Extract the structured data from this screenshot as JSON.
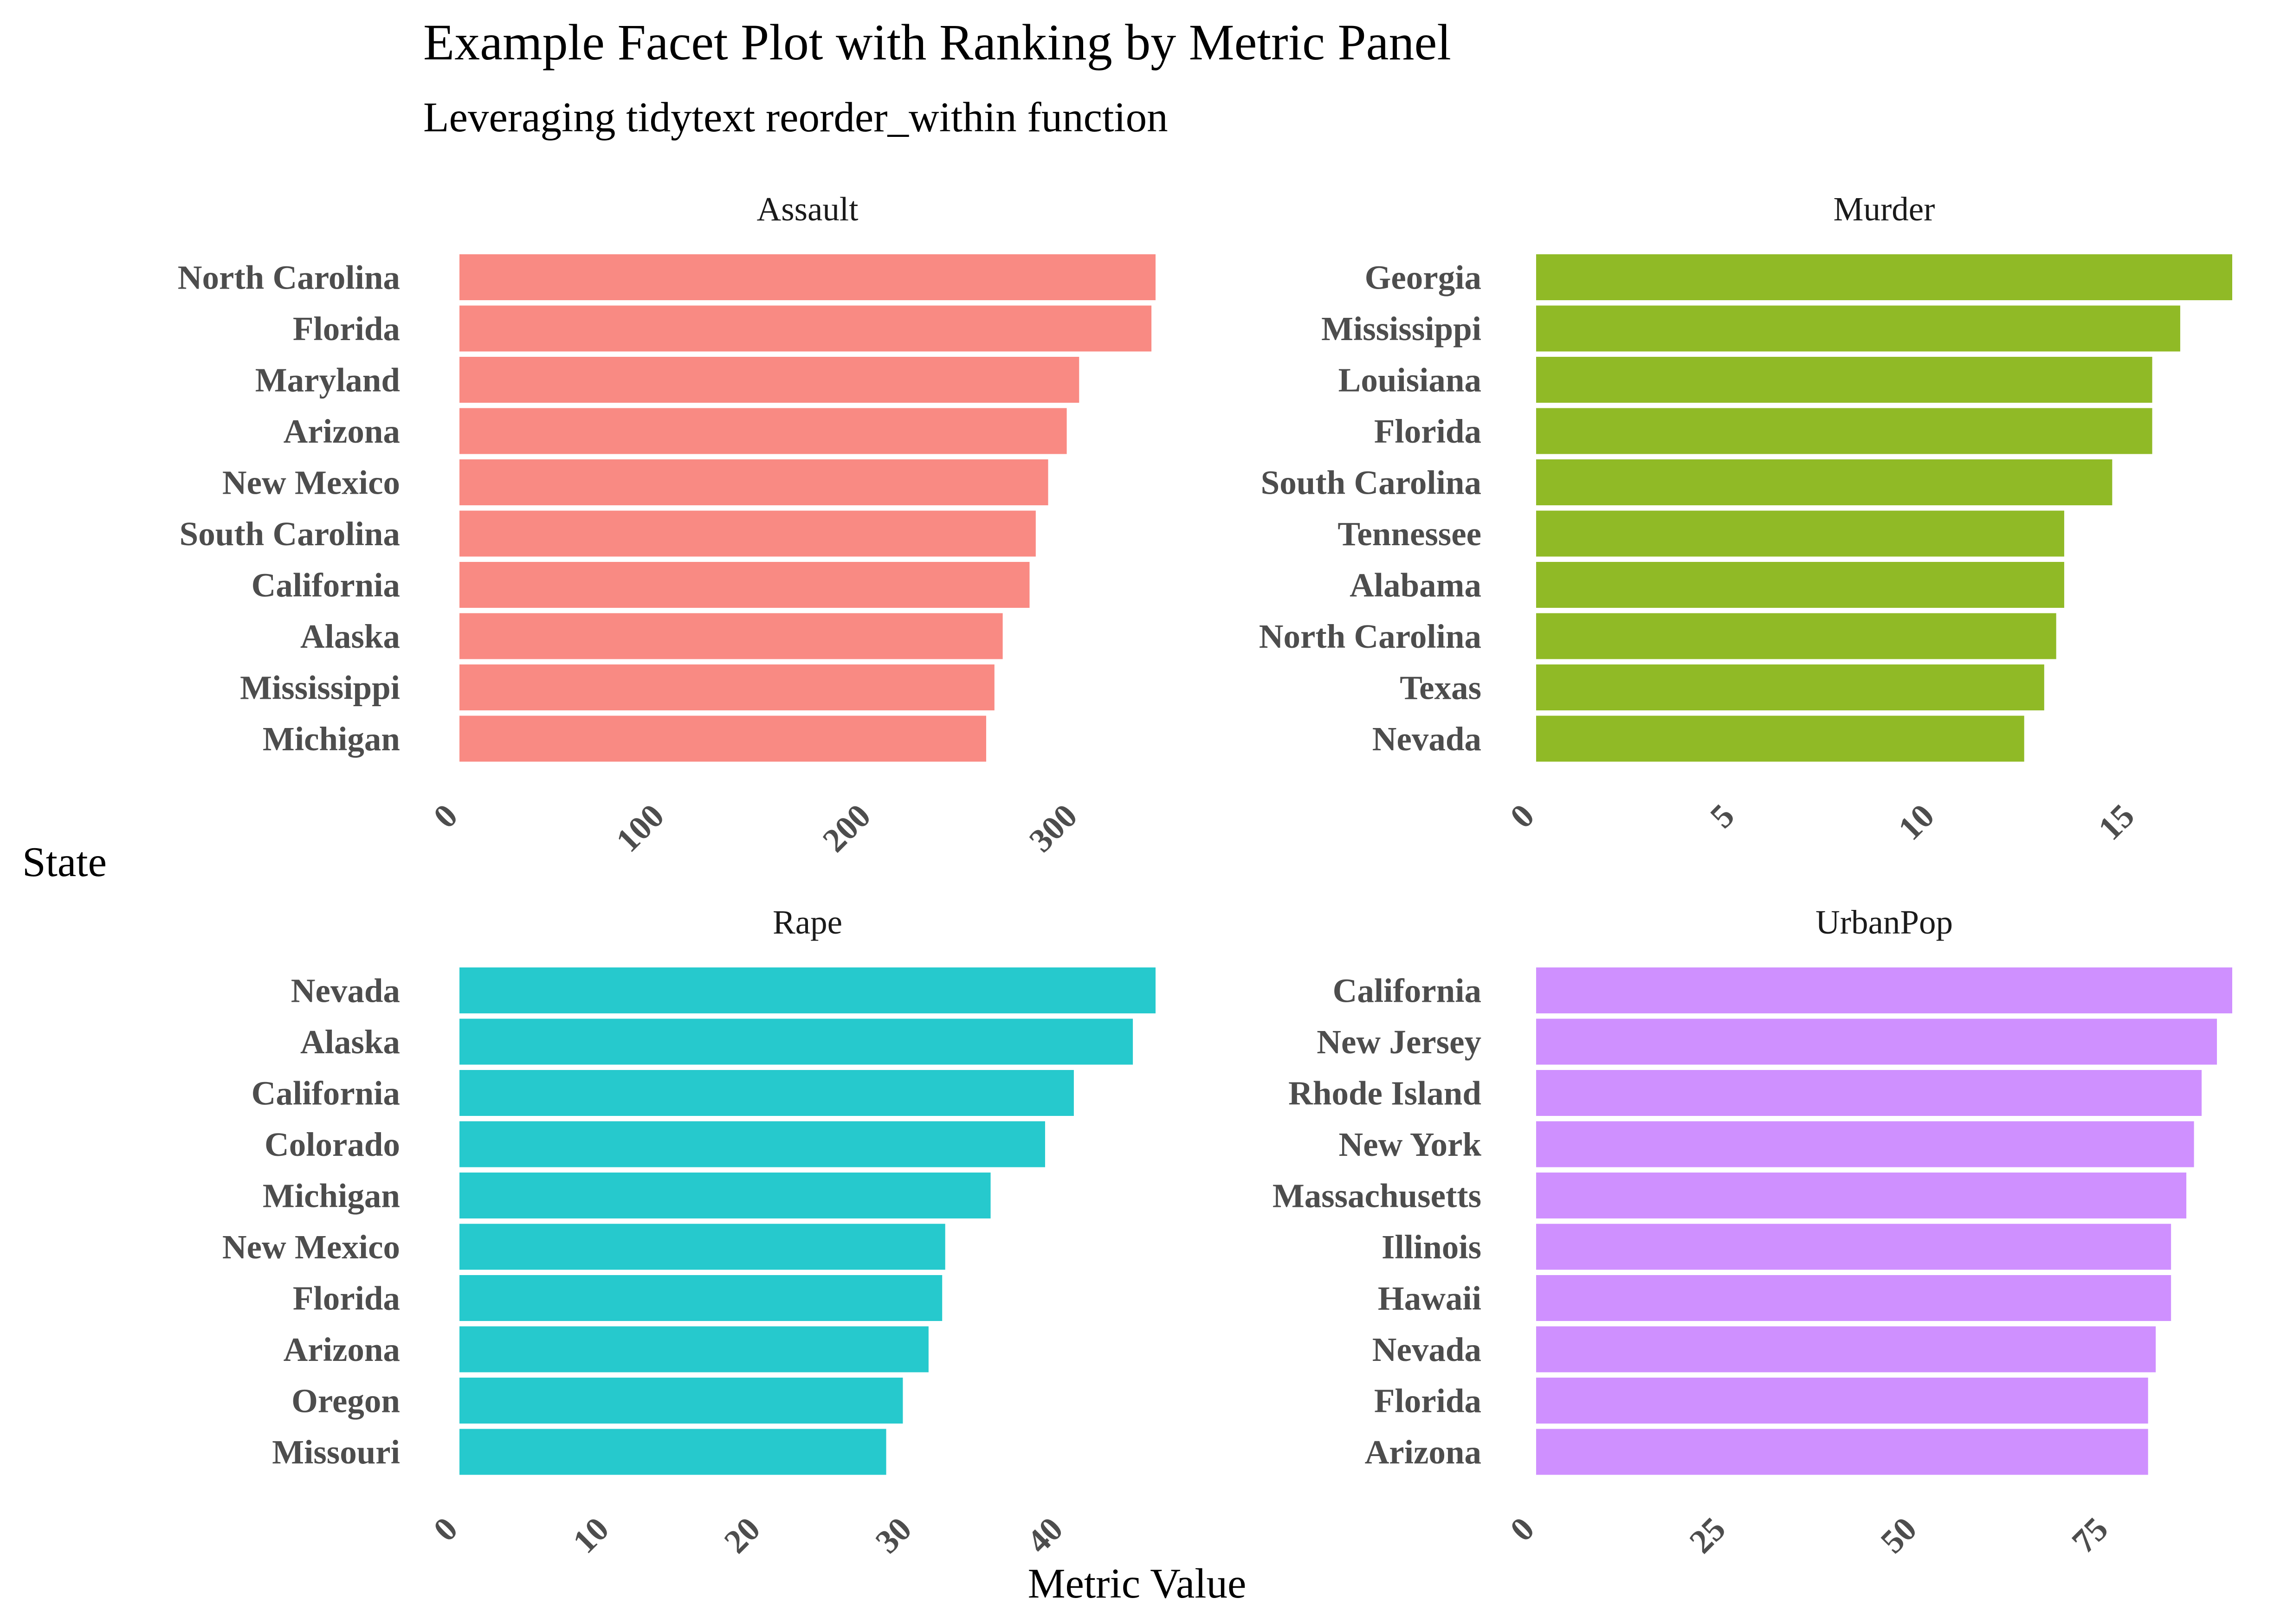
{
  "title": "Example Facet Plot with Ranking by Metric Panel",
  "subtitle": "Leveraging tidytext reorder_within function",
  "y_axis_label": "State",
  "x_axis_label": "Metric Value",
  "chart_data": [
    {
      "type": "bar",
      "orientation": "horizontal",
      "facet": "Assault",
      "color": "#F8766D",
      "categories": [
        "North Carolina",
        "Florida",
        "Maryland",
        "Arizona",
        "New Mexico",
        "South Carolina",
        "California",
        "Alaska",
        "Mississippi",
        "Michigan"
      ],
      "values": [
        337,
        335,
        300,
        294,
        285,
        279,
        276,
        263,
        259,
        255
      ],
      "xticks": [
        0,
        100,
        200,
        300
      ],
      "xlim": [
        0,
        337
      ]
    },
    {
      "type": "bar",
      "orientation": "horizontal",
      "facet": "Murder",
      "color": "#7CAE00",
      "categories": [
        "Georgia",
        "Mississippi",
        "Louisiana",
        "Florida",
        "South Carolina",
        "Tennessee",
        "Alabama",
        "North Carolina",
        "Texas",
        "Nevada"
      ],
      "values": [
        17.4,
        16.1,
        15.4,
        15.4,
        14.4,
        13.2,
        13.2,
        13.0,
        12.7,
        12.2
      ],
      "xticks": [
        0,
        5,
        10,
        15
      ],
      "xlim": [
        0,
        17.4
      ]
    },
    {
      "type": "bar",
      "orientation": "horizontal",
      "facet": "Rape",
      "color": "#00BFC4",
      "categories": [
        "Nevada",
        "Alaska",
        "California",
        "Colorado",
        "Michigan",
        "New Mexico",
        "Florida",
        "Arizona",
        "Oregon",
        "Missouri"
      ],
      "values": [
        46.0,
        44.5,
        40.6,
        38.7,
        35.1,
        32.1,
        31.9,
        31.0,
        29.3,
        28.2
      ],
      "xticks": [
        0,
        10,
        20,
        30,
        40
      ],
      "xlim": [
        0,
        46.0
      ]
    },
    {
      "type": "bar",
      "orientation": "horizontal",
      "facet": "UrbanPop",
      "color": "#C77CFF",
      "categories": [
        "California",
        "New Jersey",
        "Rhode Island",
        "New York",
        "Massachusetts",
        "Illinois",
        "Hawaii",
        "Nevada",
        "Florida",
        "Arizona"
      ],
      "values": [
        91,
        89,
        87,
        86,
        85,
        83,
        83,
        81,
        80,
        80
      ],
      "xticks": [
        0,
        25,
        50,
        75
      ],
      "xlim": [
        0,
        91
      ]
    }
  ]
}
